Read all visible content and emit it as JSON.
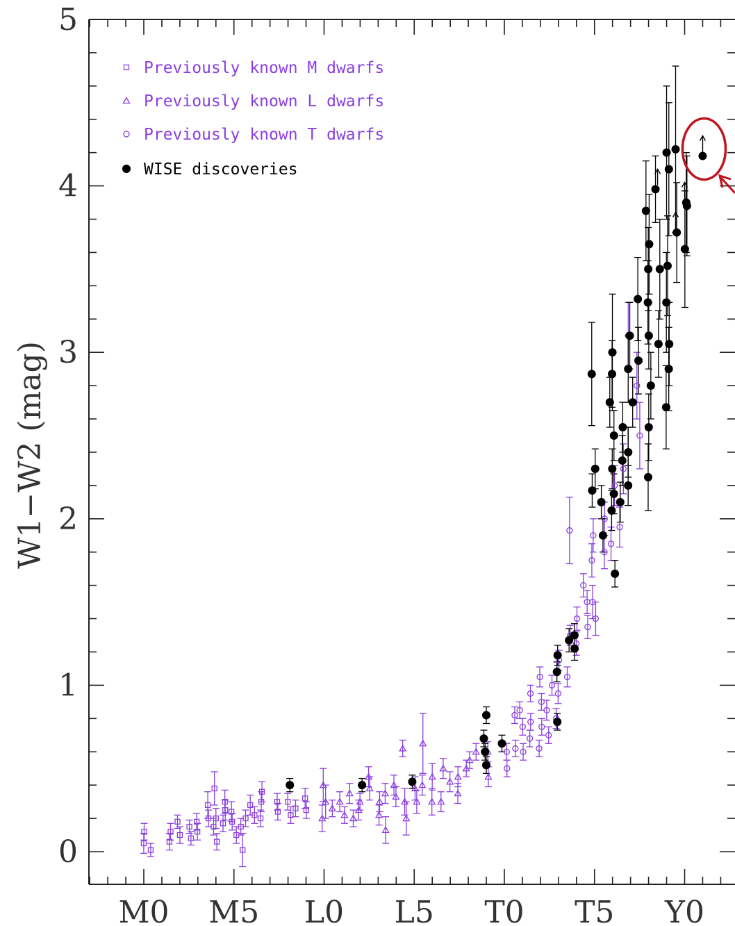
{
  "chart_data": {
    "type": "scatter",
    "ylabel": "W1−W2 (mag)",
    "xlabel": "",
    "ylim": [
      -0.2,
      5.0
    ],
    "xlim": [
      -3,
      29
    ],
    "x_tick_labels": [
      {
        "label": "M0",
        "value": 0
      },
      {
        "label": "M5",
        "value": 5
      },
      {
        "label": "L0",
        "value": 10
      },
      {
        "label": "L5",
        "value": 15
      },
      {
        "label": "T0",
        "value": 20
      },
      {
        "label": "T5",
        "value": 25
      },
      {
        "label": "Y0",
        "value": 30
      }
    ],
    "y_tick_labels": [
      {
        "label": "0",
        "value": 0
      },
      {
        "label": "1",
        "value": 1
      },
      {
        "label": "2",
        "value": 2
      },
      {
        "label": "3",
        "value": 3
      },
      {
        "label": "4",
        "value": 4
      },
      {
        "label": "5",
        "value": 5
      }
    ],
    "colors": {
      "previously_known": "#8a3fe0",
      "wise": "#000000",
      "highlight": "#c0141e"
    },
    "legend": {
      "placement": "top-left",
      "entries": [
        {
          "label": "Previously known M dwarfs",
          "marker": "square",
          "color": "#8a3fe0"
        },
        {
          "label": "Previously known L dwarfs",
          "marker": "triangle",
          "color": "#8a3fe0"
        },
        {
          "label": "Previously known T dwarfs",
          "marker": "circle",
          "color": "#8a3fe0"
        },
        {
          "label": "WISE discoveries",
          "marker": "filled-circle",
          "color": "#000000"
        }
      ]
    },
    "series": [
      {
        "name": "Previously known M dwarfs",
        "marker": "square",
        "points": [
          {
            "x": 0,
            "y": 0.05,
            "err": 0.06
          },
          {
            "x": 0,
            "y": 0.12,
            "err": 0.05
          },
          {
            "x": 0.5,
            "y": 0.01,
            "err": 0.04
          },
          {
            "x": 1.5,
            "y": 0.06,
            "err": 0.05
          },
          {
            "x": 1.5,
            "y": 0.12,
            "err": 0.05
          },
          {
            "x": 2,
            "y": 0.1,
            "err": 0.05
          },
          {
            "x": 2,
            "y": 0.18,
            "err": 0.04
          },
          {
            "x": 2.5,
            "y": 0.08,
            "err": 0.04
          },
          {
            "x": 2.5,
            "y": 0.15,
            "err": 0.04
          },
          {
            "x": 3,
            "y": 0.12,
            "err": 0.05
          },
          {
            "x": 3,
            "y": 0.18,
            "err": 0.05
          },
          {
            "x": 3.5,
            "y": 0.2,
            "err": 0.05
          },
          {
            "x": 3.5,
            "y": 0.28,
            "err": 0.08
          },
          {
            "x": 4,
            "y": 0.15,
            "err": 0.05
          },
          {
            "x": 4,
            "y": 0.2,
            "err": 0.06
          },
          {
            "x": 4,
            "y": 0.38,
            "err": 0.1
          },
          {
            "x": 4,
            "y": 0.06,
            "err": 0.05
          },
          {
            "x": 4.5,
            "y": 0.17,
            "err": 0.05
          },
          {
            "x": 4.5,
            "y": 0.25,
            "err": 0.06
          },
          {
            "x": 4.5,
            "y": 0.3,
            "err": 0.07
          },
          {
            "x": 5,
            "y": 0.18,
            "err": 0.05
          },
          {
            "x": 5,
            "y": 0.24,
            "err": 0.06
          },
          {
            "x": 5,
            "y": 0.1,
            "err": 0.05
          },
          {
            "x": 5.5,
            "y": 0.2,
            "err": 0.05
          },
          {
            "x": 5.5,
            "y": 0.15,
            "err": 0.05
          },
          {
            "x": 5.5,
            "y": 0.01,
            "err": 0.1
          },
          {
            "x": 6,
            "y": 0.22,
            "err": 0.05
          },
          {
            "x": 6,
            "y": 0.28,
            "err": 0.06
          },
          {
            "x": 6.5,
            "y": 0.2,
            "err": 0.05
          },
          {
            "x": 6.5,
            "y": 0.3,
            "err": 0.06
          },
          {
            "x": 6.5,
            "y": 0.36,
            "err": 0.06
          },
          {
            "x": 7.5,
            "y": 0.24,
            "err": 0.05
          },
          {
            "x": 7.5,
            "y": 0.3,
            "err": 0.05
          },
          {
            "x": 8,
            "y": 0.22,
            "err": 0.05
          },
          {
            "x": 8,
            "y": 0.3,
            "err": 0.05
          },
          {
            "x": 8.5,
            "y": 0.26,
            "err": 0.05
          },
          {
            "x": 9,
            "y": 0.25,
            "err": 0.05
          },
          {
            "x": 9,
            "y": 0.32,
            "err": 0.06
          }
        ]
      },
      {
        "name": "Previously known L dwarfs",
        "marker": "triangle",
        "points": [
          {
            "x": 10,
            "y": 0.2,
            "err": 0.08
          },
          {
            "x": 10,
            "y": 0.3,
            "err": 0.1
          },
          {
            "x": 10,
            "y": 0.4,
            "err": 0.1
          },
          {
            "x": 10.5,
            "y": 0.26,
            "err": 0.05
          },
          {
            "x": 11,
            "y": 0.3,
            "err": 0.06
          },
          {
            "x": 11,
            "y": 0.22,
            "err": 0.05
          },
          {
            "x": 11.5,
            "y": 0.35,
            "err": 0.06
          },
          {
            "x": 11.5,
            "y": 0.2,
            "err": 0.05
          },
          {
            "x": 12,
            "y": 0.3,
            "err": 0.05
          },
          {
            "x": 12,
            "y": 0.25,
            "err": 0.06
          },
          {
            "x": 12.5,
            "y": 0.38,
            "err": 0.07
          },
          {
            "x": 12.5,
            "y": 0.45,
            "err": 0.06
          },
          {
            "x": 13,
            "y": 0.3,
            "err": 0.06
          },
          {
            "x": 13,
            "y": 0.22,
            "err": 0.06
          },
          {
            "x": 13.5,
            "y": 0.35,
            "err": 0.06
          },
          {
            "x": 13.5,
            "y": 0.13,
            "err": 0.08
          },
          {
            "x": 14,
            "y": 0.33,
            "err": 0.06
          },
          {
            "x": 14,
            "y": 0.4,
            "err": 0.06
          },
          {
            "x": 14.5,
            "y": 0.62,
            "err": 0.05
          },
          {
            "x": 14.5,
            "y": 0.3,
            "err": 0.08
          },
          {
            "x": 14.5,
            "y": 0.2,
            "err": 0.1
          },
          {
            "x": 15,
            "y": 0.38,
            "err": 0.07
          },
          {
            "x": 15,
            "y": 0.3,
            "err": 0.07
          },
          {
            "x": 15.5,
            "y": 0.4,
            "err": 0.06
          },
          {
            "x": 15.5,
            "y": 0.65,
            "err": 0.18
          },
          {
            "x": 16,
            "y": 0.45,
            "err": 0.08
          },
          {
            "x": 16,
            "y": 0.3,
            "err": 0.08
          },
          {
            "x": 16.5,
            "y": 0.5,
            "err": 0.06
          },
          {
            "x": 16.5,
            "y": 0.3,
            "err": 0.06
          },
          {
            "x": 17,
            "y": 0.42,
            "err": 0.06
          },
          {
            "x": 17.5,
            "y": 0.45,
            "err": 0.06
          },
          {
            "x": 17.5,
            "y": 0.35,
            "err": 0.06
          },
          {
            "x": 18,
            "y": 0.55,
            "err": 0.05
          },
          {
            "x": 18,
            "y": 0.5,
            "err": 0.05
          },
          {
            "x": 18.5,
            "y": 0.6,
            "err": 0.05
          },
          {
            "x": 19,
            "y": 0.6,
            "err": 0.06
          },
          {
            "x": 19,
            "y": 0.45,
            "err": 0.06
          }
        ]
      },
      {
        "name": "Previously known T dwarfs",
        "marker": "circle",
        "points": [
          {
            "x": 20,
            "y": 0.5,
            "err": 0.05
          },
          {
            "x": 20,
            "y": 0.6,
            "err": 0.05
          },
          {
            "x": 20.5,
            "y": 0.62,
            "err": 0.05
          },
          {
            "x": 20.5,
            "y": 0.82,
            "err": 0.05
          },
          {
            "x": 21,
            "y": 0.6,
            "err": 0.05
          },
          {
            "x": 21,
            "y": 0.75,
            "err": 0.05
          },
          {
            "x": 21,
            "y": 0.85,
            "err": 0.05
          },
          {
            "x": 21.5,
            "y": 0.95,
            "err": 0.05
          },
          {
            "x": 21.5,
            "y": 0.78,
            "err": 0.05
          },
          {
            "x": 21.5,
            "y": 0.68,
            "err": 0.05
          },
          {
            "x": 22,
            "y": 1.05,
            "err": 0.06
          },
          {
            "x": 22,
            "y": 0.9,
            "err": 0.05
          },
          {
            "x": 22,
            "y": 0.75,
            "err": 0.05
          },
          {
            "x": 22,
            "y": 0.62,
            "err": 0.05
          },
          {
            "x": 22.5,
            "y": 1.0,
            "err": 0.06
          },
          {
            "x": 22.5,
            "y": 0.85,
            "err": 0.06
          },
          {
            "x": 22.5,
            "y": 0.7,
            "err": 0.05
          },
          {
            "x": 23,
            "y": 1.15,
            "err": 0.06
          },
          {
            "x": 23,
            "y": 0.95,
            "err": 0.06
          },
          {
            "x": 23,
            "y": 0.8,
            "err": 0.06
          },
          {
            "x": 23.5,
            "y": 1.3,
            "err": 0.06
          },
          {
            "x": 23.5,
            "y": 1.05,
            "err": 0.06
          },
          {
            "x": 23.5,
            "y": 1.93,
            "err": 0.2
          },
          {
            "x": 24,
            "y": 1.4,
            "err": 0.07
          },
          {
            "x": 24,
            "y": 1.25,
            "err": 0.07
          },
          {
            "x": 24.5,
            "y": 1.6,
            "err": 0.07
          },
          {
            "x": 24.5,
            "y": 1.5,
            "err": 0.07
          },
          {
            "x": 24.5,
            "y": 1.35,
            "err": 0.07
          },
          {
            "x": 25,
            "y": 1.9,
            "err": 0.1
          },
          {
            "x": 25,
            "y": 1.75,
            "err": 0.1
          },
          {
            "x": 25,
            "y": 1.5,
            "err": 0.1
          },
          {
            "x": 25,
            "y": 1.4,
            "err": 0.1
          },
          {
            "x": 25.5,
            "y": 2.0,
            "err": 0.1
          },
          {
            "x": 25.5,
            "y": 1.8,
            "err": 0.1
          },
          {
            "x": 26,
            "y": 2.2,
            "err": 0.12
          },
          {
            "x": 26,
            "y": 1.85,
            "err": 0.1
          },
          {
            "x": 26.5,
            "y": 2.3,
            "err": 0.15
          },
          {
            "x": 26.5,
            "y": 1.95,
            "err": 0.12
          },
          {
            "x": 27,
            "y": 2.4,
            "err": 0.15
          },
          {
            "x": 27,
            "y": 3.1,
            "err": 0.2
          },
          {
            "x": 27.5,
            "y": 2.8,
            "err": 0.2
          },
          {
            "x": 27.5,
            "y": 2.5,
            "err": 0.2
          }
        ]
      },
      {
        "name": "WISE discoveries",
        "marker": "filled-circle",
        "points": [
          {
            "x": 8,
            "y": 0.4,
            "err": 0.04
          },
          {
            "x": 12,
            "y": 0.4,
            "err": 0.04
          },
          {
            "x": 15,
            "y": 0.42,
            "err": 0.04
          },
          {
            "x": 19,
            "y": 0.82,
            "err": 0.05
          },
          {
            "x": 19,
            "y": 0.68,
            "err": 0.05
          },
          {
            "x": 19,
            "y": 0.6,
            "err": 0.05
          },
          {
            "x": 19,
            "y": 0.52,
            "err": 0.05
          },
          {
            "x": 20,
            "y": 0.65,
            "err": 0.05
          },
          {
            "x": 23,
            "y": 1.18,
            "err": 0.06
          },
          {
            "x": 23,
            "y": 1.08,
            "err": 0.06
          },
          {
            "x": 23,
            "y": 0.78,
            "err": 0.05
          },
          {
            "x": 23.5,
            "y": 1.27,
            "err": 0.07
          },
          {
            "x": 24,
            "y": 1.3,
            "err": 0.07
          },
          {
            "x": 24,
            "y": 1.22,
            "err": 0.07
          },
          {
            "x": 25,
            "y": 2.87,
            "err": 0.31
          },
          {
            "x": 25,
            "y": 2.3,
            "err": 0.12
          },
          {
            "x": 25,
            "y": 2.17,
            "err": 0.1
          },
          {
            "x": 25.5,
            "y": 1.9,
            "err": 0.1
          },
          {
            "x": 25.5,
            "y": 2.1,
            "err": 0.1
          },
          {
            "x": 26,
            "y": 3.0,
            "err": 0.35
          },
          {
            "x": 26,
            "y": 2.87,
            "err": 0.2
          },
          {
            "x": 26,
            "y": 2.7,
            "err": 0.15
          },
          {
            "x": 26,
            "y": 2.5,
            "err": 0.15
          },
          {
            "x": 26,
            "y": 2.3,
            "err": 0.12
          },
          {
            "x": 26,
            "y": 2.15,
            "err": 0.12
          },
          {
            "x": 26,
            "y": 2.05,
            "err": 0.12
          },
          {
            "x": 26,
            "y": 1.67,
            "err": 0.08
          },
          {
            "x": 26.5,
            "y": 2.55,
            "err": 0.15
          },
          {
            "x": 26.5,
            "y": 2.35,
            "err": 0.15
          },
          {
            "x": 26.5,
            "y": 2.1,
            "err": 0.12
          },
          {
            "x": 27,
            "y": 3.1,
            "err": 0.2
          },
          {
            "x": 27,
            "y": 2.9,
            "err": 0.2
          },
          {
            "x": 27,
            "y": 2.7,
            "err": 0.15
          },
          {
            "x": 27,
            "y": 2.4,
            "err": 0.15
          },
          {
            "x": 27,
            "y": 2.2,
            "err": 0.12
          },
          {
            "x": 27.5,
            "y": 3.32,
            "err": 0.25
          },
          {
            "x": 27.5,
            "y": 2.95,
            "err": 0.2
          },
          {
            "x": 28,
            "y": 3.85,
            "err": 0.3
          },
          {
            "x": 28,
            "y": 3.65,
            "err": 0.3
          },
          {
            "x": 28,
            "y": 3.5,
            "err": 0.25
          },
          {
            "x": 28,
            "y": 3.3,
            "err": 0.25
          },
          {
            "x": 28,
            "y": 3.1,
            "err": 0.2
          },
          {
            "x": 28,
            "y": 2.8,
            "err": 0.2
          },
          {
            "x": 28,
            "y": 2.55,
            "err": 0.2
          },
          {
            "x": 28,
            "y": 2.25,
            "err": 0.2
          },
          {
            "x": 28.5,
            "y": 3.98,
            "err": 0.2
          },
          {
            "x": 28.5,
            "y": 3.5,
            "err": 0.3
          },
          {
            "x": 28.5,
            "y": 3.05,
            "err": 0.2
          },
          {
            "x": 29,
            "y": 4.2,
            "err": 0.4
          },
          {
            "x": 29,
            "y": 4.1,
            "err": 0.4
          },
          {
            "x": 29,
            "y": 3.52,
            "err": 0.3
          },
          {
            "x": 29,
            "y": 3.3,
            "err": 0.3
          },
          {
            "x": 29,
            "y": 3.05,
            "err": 0.25
          },
          {
            "x": 29,
            "y": 2.9,
            "err": 0.25
          },
          {
            "x": 29,
            "y": 2.67,
            "err": 0.25
          },
          {
            "x": 29.5,
            "y": 4.22,
            "err": 0.5
          },
          {
            "x": 29.5,
            "y": 3.72,
            "err": 0.3
          },
          {
            "x": 30,
            "y": 3.9,
            "err": 0.3
          },
          {
            "x": 30,
            "y": 3.88,
            "err": 0.3
          },
          {
            "x": 30,
            "y": 3.62,
            "err": 0.35
          }
        ]
      }
    ],
    "lower_limits": [
      {
        "x": 28.5,
        "y": 3.98
      },
      {
        "x": 29.5,
        "y": 3.72
      },
      {
        "x": 30,
        "y": 3.9
      },
      {
        "x": 31,
        "y": 4.18
      }
    ],
    "highlighted_point": {
      "x": 31,
      "y": 4.18,
      "lower_limit": true
    }
  }
}
